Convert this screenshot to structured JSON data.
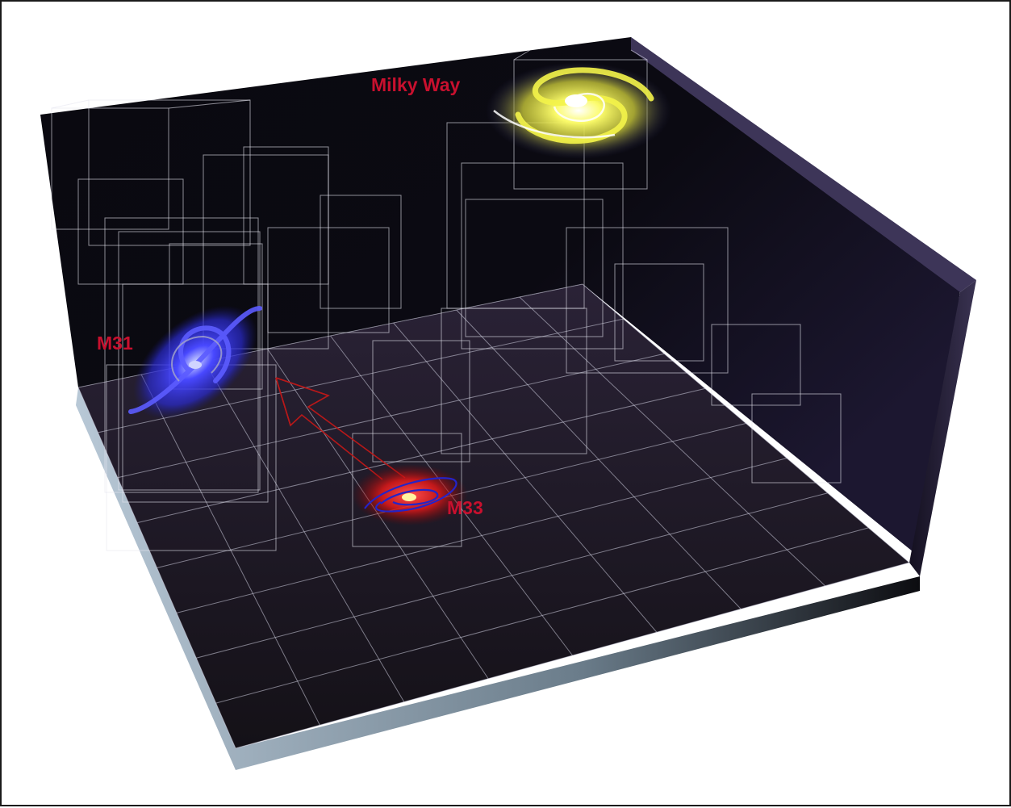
{
  "labels": {
    "milky_way": "Milky Way",
    "m31": "M31",
    "m33": "M33"
  },
  "colors": {
    "label": "#c8102e",
    "box_back": "#0c0a12",
    "box_floor": "#1a1620",
    "box_edge": "#9aaebb",
    "grid_line": "#d8d8e8",
    "milky_way": "#f2f23a",
    "m31": "#3a3af0",
    "m33_glow": "#d41a1a",
    "arrow": "#c01818"
  }
}
